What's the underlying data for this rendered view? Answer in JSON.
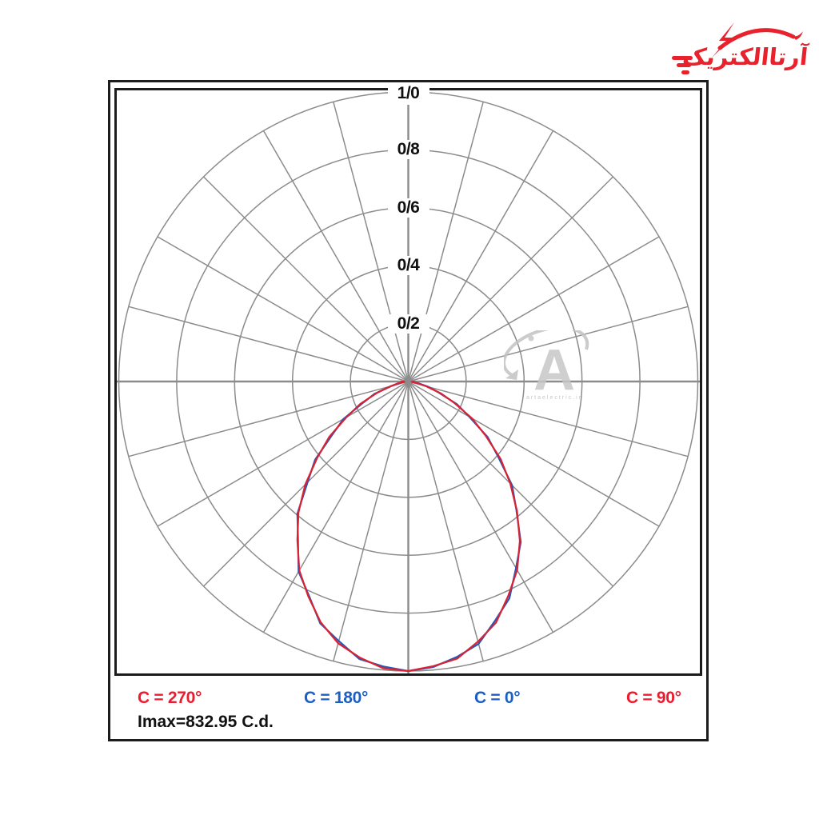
{
  "logo": {
    "brand_text": "آرتاالکتریک",
    "color": "#e8212d"
  },
  "watermark": {
    "letter": "A",
    "caption": "artaelectric.ir"
  },
  "chart": {
    "border_color": "#1c1c1c",
    "grid_color": "#8c8c8c",
    "bottom_labels": [
      {
        "text": "C = 270°",
        "color": "#ed1b2d"
      },
      {
        "text": "C = 180°",
        "color": "#1c5fc4"
      },
      {
        "text": "C = 0°",
        "color": "#1c5fc4"
      },
      {
        "text": "C = 90°",
        "color": "#ed1b2d"
      }
    ],
    "imax_label": "Imax=832.95 C.d."
  },
  "chart_data": {
    "type": "line",
    "subtype": "polar-photometric",
    "imax_cd": 832.95,
    "angle_step_deg": 15,
    "radial_ticks": [
      {
        "label": "0/2",
        "value": 0.2
      },
      {
        "label": "0/4",
        "value": 0.4
      },
      {
        "label": "0/6",
        "value": 0.6
      },
      {
        "label": "0/8",
        "value": 0.8
      },
      {
        "label": "1/0",
        "value": 1.0
      }
    ],
    "rlim": [
      0,
      1.0
    ],
    "grid": true,
    "orientation": "0deg-at-bottom",
    "angles_deg_from_nadir": [
      -90,
      -85,
      -80,
      -75,
      -70,
      -65,
      -60,
      -55,
      -50,
      -45,
      -40,
      -35,
      -30,
      -25,
      -20,
      -15,
      -10,
      -5,
      0,
      5,
      10,
      15,
      20,
      25,
      30,
      35,
      40,
      45,
      50,
      55,
      60,
      65,
      70,
      75,
      80,
      85,
      90
    ],
    "series": [
      {
        "name": "C0-C180 plane",
        "color": "#2757b8",
        "values": [
          0.02,
          0.024,
          0.028,
          0.061,
          0.124,
          0.171,
          0.258,
          0.321,
          0.42,
          0.492,
          0.596,
          0.664,
          0.758,
          0.814,
          0.889,
          0.928,
          0.973,
          0.988,
          1.0,
          0.99,
          0.966,
          0.938,
          0.878,
          0.826,
          0.744,
          0.677,
          0.581,
          0.507,
          0.406,
          0.335,
          0.243,
          0.185,
          0.111,
          0.072,
          0.034,
          0.016,
          0.022
        ]
      },
      {
        "name": "C90-C270 plane",
        "color": "#d92233",
        "values": [
          0.026,
          0.014,
          0.035,
          0.064,
          0.115,
          0.183,
          0.247,
          0.333,
          0.411,
          0.503,
          0.59,
          0.668,
          0.753,
          0.818,
          0.885,
          0.936,
          0.968,
          0.994,
          1.0,
          0.987,
          0.972,
          0.93,
          0.886,
          0.817,
          0.752,
          0.672,
          0.584,
          0.498,
          0.416,
          0.326,
          0.253,
          0.176,
          0.119,
          0.065,
          0.031,
          0.012,
          0.018
        ]
      }
    ],
    "legend_labels": [
      "C = 270°",
      "C = 180°",
      "C = 0°",
      "C = 90°"
    ]
  }
}
